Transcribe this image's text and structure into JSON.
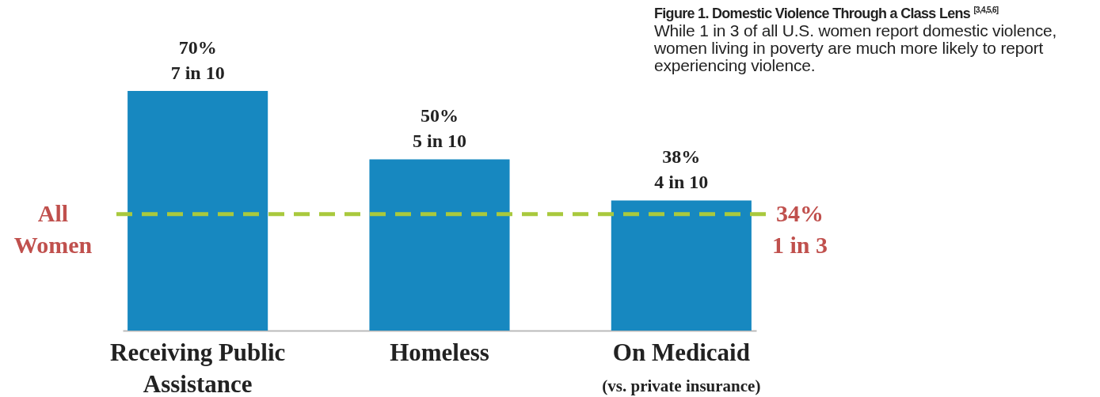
{
  "chart_data": {
    "type": "bar",
    "title": "Figure 1. Domestic Violence Through a Class Lens $^{[3,4,5,6]}$",
    "subtitle": "While 1 in 3 of all U.S. women report domestic violence, women living in poverty are much more likely to report experiencing violence.",
    "categories": [
      "Receiving Public Assistance",
      "Homeless",
      "On Medicaid (vs. private insurance)"
    ],
    "values": [
      70,
      50,
      38
    ],
    "color": "#1788c0",
    "value_labels": [
      "70%\n7 in 10",
      "50%\n5 in 10",
      "38%\n4 in 10"
    ],
    "ref_lines": [
      {
        "axis": "y",
        "value": 34,
        "label": "34%\n1 in 3",
        "color": "#a9c93d",
        "line_style": "dashed"
      }
    ],
    "annotations": [
      "All Women"
    ]
  }
}
